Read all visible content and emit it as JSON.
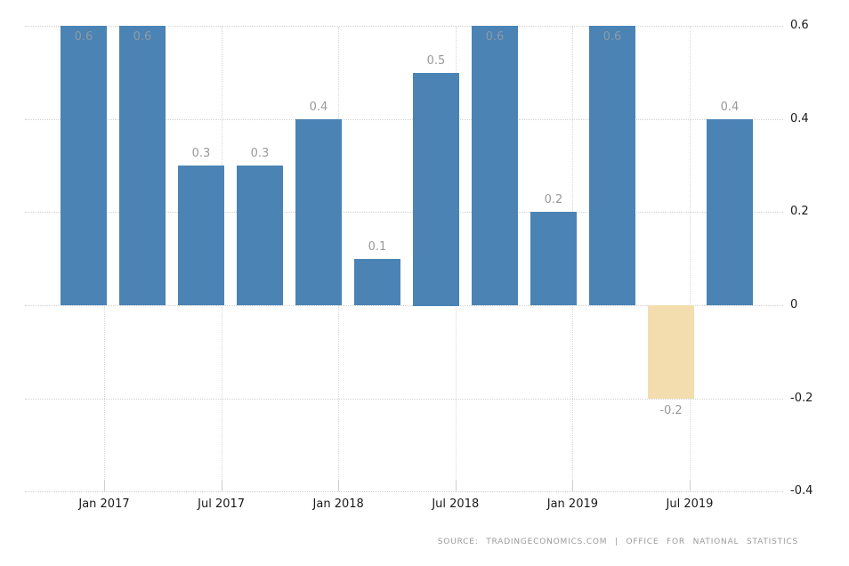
{
  "chart_data": {
    "type": "bar",
    "title": "",
    "values": [
      0.6,
      0.6,
      0.3,
      0.3,
      0.4,
      0.1,
      0.5,
      0.6,
      0.2,
      0.6,
      -0.2,
      0.4
    ],
    "data_labels": [
      "0.6",
      "0.6",
      "0.3",
      "0.3",
      "0.4",
      "0.1",
      "0.5",
      "0.6",
      "0.2",
      "0.6",
      "-0.2",
      "0.4"
    ],
    "x_tick_labels": [
      "Jan 2017",
      "Jul 2017",
      "Jan 2018",
      "Jul 2018",
      "Jan 2019",
      "Jul 2019"
    ],
    "y_tick_labels": [
      "0.6",
      "0.4",
      "0.2",
      "0",
      "-0.2",
      "-0.4"
    ],
    "ylim": [
      -0.4,
      0.6
    ],
    "grid": "dotted",
    "legend_position": "none",
    "colors": {
      "bar_positive": "#4a83b4",
      "bar_negative": "#f3ddaf",
      "gridline": "#d4d4d4",
      "axis_text": "#1a1a1a",
      "value_label": "#999999"
    }
  },
  "footer": {
    "source_text": "SOURCE: TRADINGECONOMICS.COM | OFFICE FOR NATIONAL STATISTICS"
  }
}
